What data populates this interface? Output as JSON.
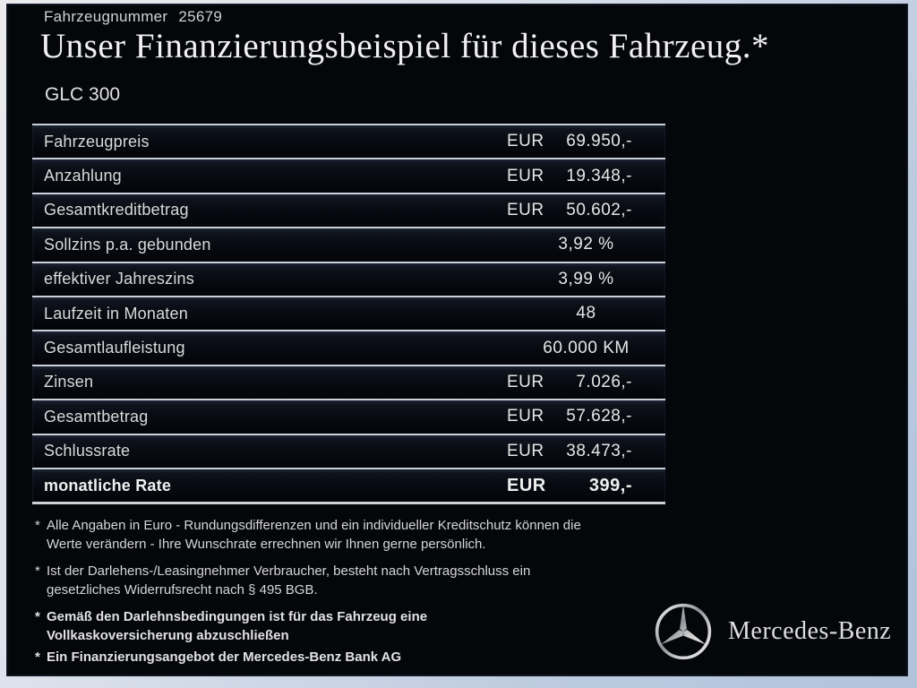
{
  "header": {
    "vehicle_number_label": "Fahrzeugnummer",
    "vehicle_number": "25679",
    "title": "Unser Finanzierungsbeispiel für dieses Fahrzeug.*",
    "model": "GLC 300"
  },
  "table": {
    "rows": [
      {
        "label": "Fahrzeugpreis",
        "currency": "EUR",
        "value": "69.950,-",
        "bold": false
      },
      {
        "label": "Anzahlung",
        "currency": "EUR",
        "value": "19.348,-",
        "bold": false
      },
      {
        "label": "Gesamtkreditbetrag",
        "currency": "EUR",
        "value": "50.602,-",
        "bold": false
      },
      {
        "label": "Sollzins p.a. gebunden",
        "currency": "",
        "value": "3,92 %",
        "bold": false
      },
      {
        "label": "effektiver Jahreszins",
        "currency": "",
        "value": "3,99 %",
        "bold": false
      },
      {
        "label": "Laufzeit in Monaten",
        "currency": "",
        "value": "48",
        "bold": false
      },
      {
        "label": "Gesamtlaufleistung",
        "currency": "",
        "value": "60.000 KM",
        "bold": false
      },
      {
        "label": "Zinsen",
        "currency": "EUR",
        "value": "7.026,-",
        "bold": false
      },
      {
        "label": "Gesamtbetrag",
        "currency": "EUR",
        "value": "57.628,-",
        "bold": false
      },
      {
        "label": "Schlussrate",
        "currency": "EUR",
        "value": "38.473,-",
        "bold": false
      },
      {
        "label": "monatliche Rate",
        "currency": "EUR",
        "value": "399,-",
        "bold": true
      }
    ]
  },
  "footnotes": [
    {
      "marker": "*",
      "bold": false,
      "lines": [
        "Alle Angaben in Euro - Rundungsdifferenzen und ein individueller Kreditschutz können die",
        "Werte verändern - Ihre Wunschrate errechnen wir Ihnen gerne persönlich."
      ]
    },
    {
      "marker": "*",
      "bold": false,
      "lines": [
        "Ist der Darlehens-/Leasingnehmer Verbraucher, besteht nach Vertragsschluss ein",
        "gesetzliches  Widerrufsrecht nach § 495 BGB."
      ]
    },
    {
      "marker": "*",
      "bold": true,
      "lines": [
        "Gemäß den Darlehnsbedingungen ist für das Fahrzeug eine",
        "Vollkaskoversicherung abzuschließen"
      ]
    },
    {
      "marker": "*",
      "bold": true,
      "lines": [
        "Ein Finanzierungsangebot der Mercedes-Benz Bank AG"
      ]
    }
  ],
  "brand": {
    "logo_icon": "mercedes-star-icon",
    "name": "Mercedes-Benz"
  },
  "colors": {
    "background": "#04060a",
    "frame_border": "#b9c9de",
    "table_line": "#ccd0d8",
    "text": "#dadada",
    "title_text": "#f1f1f1"
  }
}
